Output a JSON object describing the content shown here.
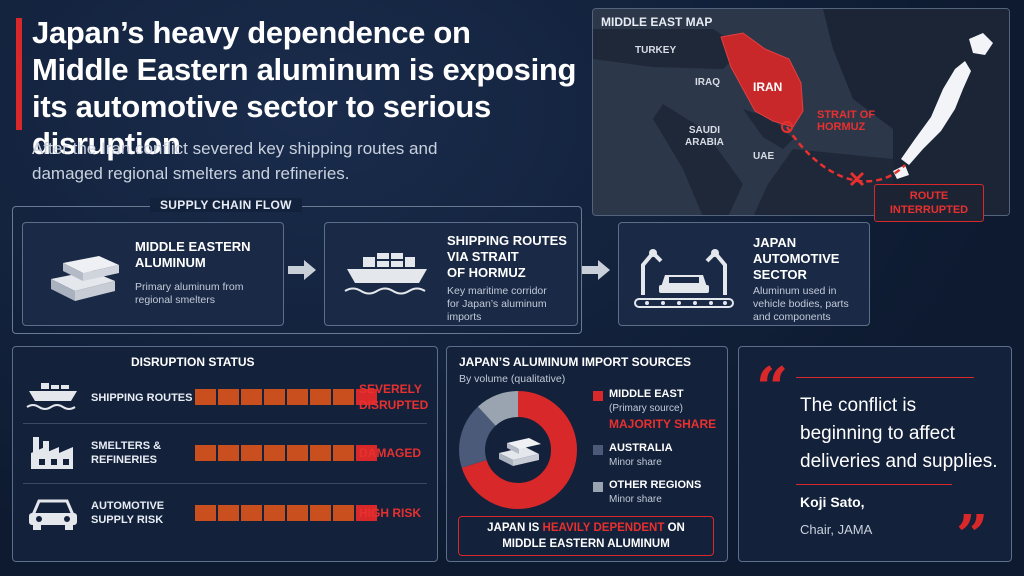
{
  "headline": {
    "line1": "Japan’s heavy dependence on",
    "line2": "Middle Eastern aluminum is exposing",
    "line3": "its automotive sector to serious disruption",
    "subtitle_line1": "After the Iran conflict severed key shipping routes and",
    "subtitle_line2": "damaged regional smelters and refineries."
  },
  "map": {
    "title": "MIDDLE EAST MAP",
    "labels": {
      "turkey": "TURKEY",
      "iraq": "IRAQ",
      "iran": "IRAN",
      "saudi1": "SAUDI",
      "saudi2": "ARABIA",
      "uae": "UAE",
      "strait1": "STRAIT OF",
      "strait2": "HORMUZ",
      "route1": "ROUTE",
      "route2": "INTERRUPTED"
    }
  },
  "supply_chain": {
    "label": "SUPPLY CHAIN FLOW",
    "cards": [
      {
        "title1": "MIDDLE EASTERN",
        "title2": "ALUMINUM",
        "desc1": "Primary aluminum from",
        "desc2": "regional smelters",
        "icon": "aluminum-ingots-icon"
      },
      {
        "title1": "SHIPPING ROUTES",
        "title2": "VIA STRAIT",
        "title3": "OF HORMUZ",
        "desc1": "Key maritime corridor",
        "desc2": "for Japan’s aluminum",
        "desc3": "imports",
        "icon": "cargo-ship-icon"
      },
      {
        "title1": "JAPAN",
        "title2": "AUTOMOTIVE",
        "title3": "SECTOR",
        "desc1": "Aluminum used in",
        "desc2": "vehicle bodies, parts",
        "desc3": "and components",
        "icon": "car-assembly-icon"
      }
    ]
  },
  "disruption": {
    "title": "DISRUPTION STATUS",
    "rows": [
      {
        "label1": "SHIPPING ROUTES",
        "label2": "",
        "value1": "SEVERELY",
        "value2": "DISRUPTED",
        "icon": "ship-icon"
      },
      {
        "label1": "SMELTERS &",
        "label2": "REFINERIES",
        "value1": "DAMAGED",
        "value2": "",
        "icon": "factory-icon"
      },
      {
        "label1": "AUTOMOTIVE",
        "label2": "SUPPLY RISK",
        "value1": "HIGH RISK",
        "value2": "",
        "icon": "car-icon"
      }
    ],
    "colors": {
      "segment": "#c9501e",
      "accent": "#d8282a"
    }
  },
  "imports": {
    "title": "JAPAN’S ALUMINUM IMPORT SOURCES",
    "subtitle": "By volume (qualitative)",
    "legend": [
      {
        "name": "MIDDLE EAST",
        "sub": "(Primary source)",
        "tag": "MAJORITY SHARE",
        "color": "#d8282a"
      },
      {
        "name": "AUSTRALIA",
        "sub": "Minor share",
        "color": "#4a5a78"
      },
      {
        "name": "OTHER REGIONS",
        "sub": "Minor share",
        "color": "#9aa3b0"
      }
    ],
    "dependency_a": "JAPAN IS",
    "dependency_hl": "HEAVILY DEPENDENT",
    "dependency_b": "ON",
    "dependency_line2": "MIDDLE EASTERN ALUMINUM"
  },
  "quote": {
    "open": "“",
    "close": "”",
    "line1": "The conflict is",
    "line2": "beginning to affect",
    "line3": "deliveries and supplies.",
    "author": "Koji Sato,",
    "role": "Chair, JAMA"
  }
}
